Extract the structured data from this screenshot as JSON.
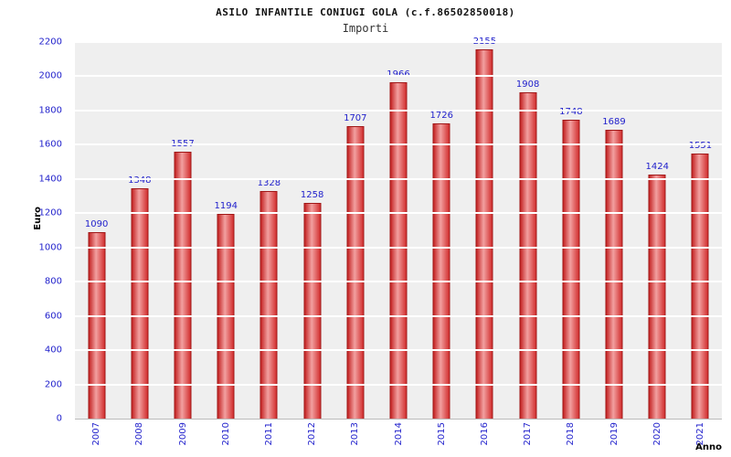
{
  "header": {
    "title": "ASILO INFANTILE CONIUGI GOLA (c.f.86502850018)",
    "subtitle": "Importi"
  },
  "chart_data": {
    "type": "bar",
    "title": "ASILO INFANTILE CONIUGI GOLA (c.f.86502850018)",
    "subtitle": "Importi",
    "xlabel": "Anno",
    "ylabel": "Euro",
    "categories": [
      "2007",
      "2008",
      "2009",
      "2010",
      "2011",
      "2012",
      "2013",
      "2014",
      "2015",
      "2016",
      "2017",
      "2018",
      "2019",
      "2020",
      "2021"
    ],
    "values": [
      1090,
      1348,
      1557,
      1194,
      1328,
      1258,
      1707,
      1966,
      1726,
      2155,
      1908,
      1748,
      1689,
      1424,
      1551
    ],
    "ylim": [
      0,
      2200
    ],
    "ytick_step": 200,
    "grid": true,
    "legend": "none",
    "colors": {
      "bar_edge": "#a01818",
      "bar_dark": "#c42424",
      "bar_light": "#f2a0a0",
      "label_blue": "#2222cc",
      "plot_bg": "#efefef",
      "grid_line": "#ffffff"
    }
  }
}
